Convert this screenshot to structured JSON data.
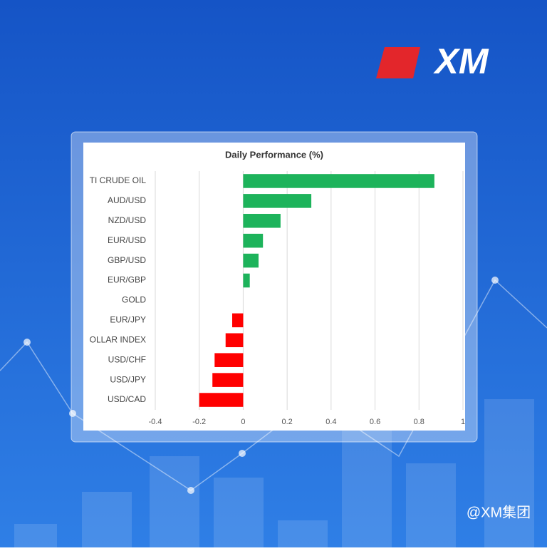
{
  "logo": "XM",
  "watermark": "@XM集团",
  "chart_data": {
    "type": "bar",
    "orientation": "horizontal",
    "title": "Daily Performance (%)",
    "categories": [
      "TI CRUDE OIL",
      "AUD/USD",
      "NZD/USD",
      "EUR/USD",
      "GBP/USD",
      "EUR/GBP",
      "GOLD",
      "EUR/JPY",
      "OLLAR INDEX",
      "USD/CHF",
      "USD/JPY",
      "USD/CAD"
    ],
    "values": [
      0.87,
      0.31,
      0.17,
      0.09,
      0.07,
      0.03,
      0,
      -0.05,
      -0.08,
      -0.13,
      -0.14,
      -0.2
    ],
    "positive_color": "#1db35b",
    "negative_color": "#ff0000",
    "xlim": [
      -0.4,
      1
    ],
    "xticks": [
      -0.4,
      -0.2,
      0,
      0.2,
      0.4,
      0.6,
      0.8,
      1
    ],
    "grid": true
  }
}
